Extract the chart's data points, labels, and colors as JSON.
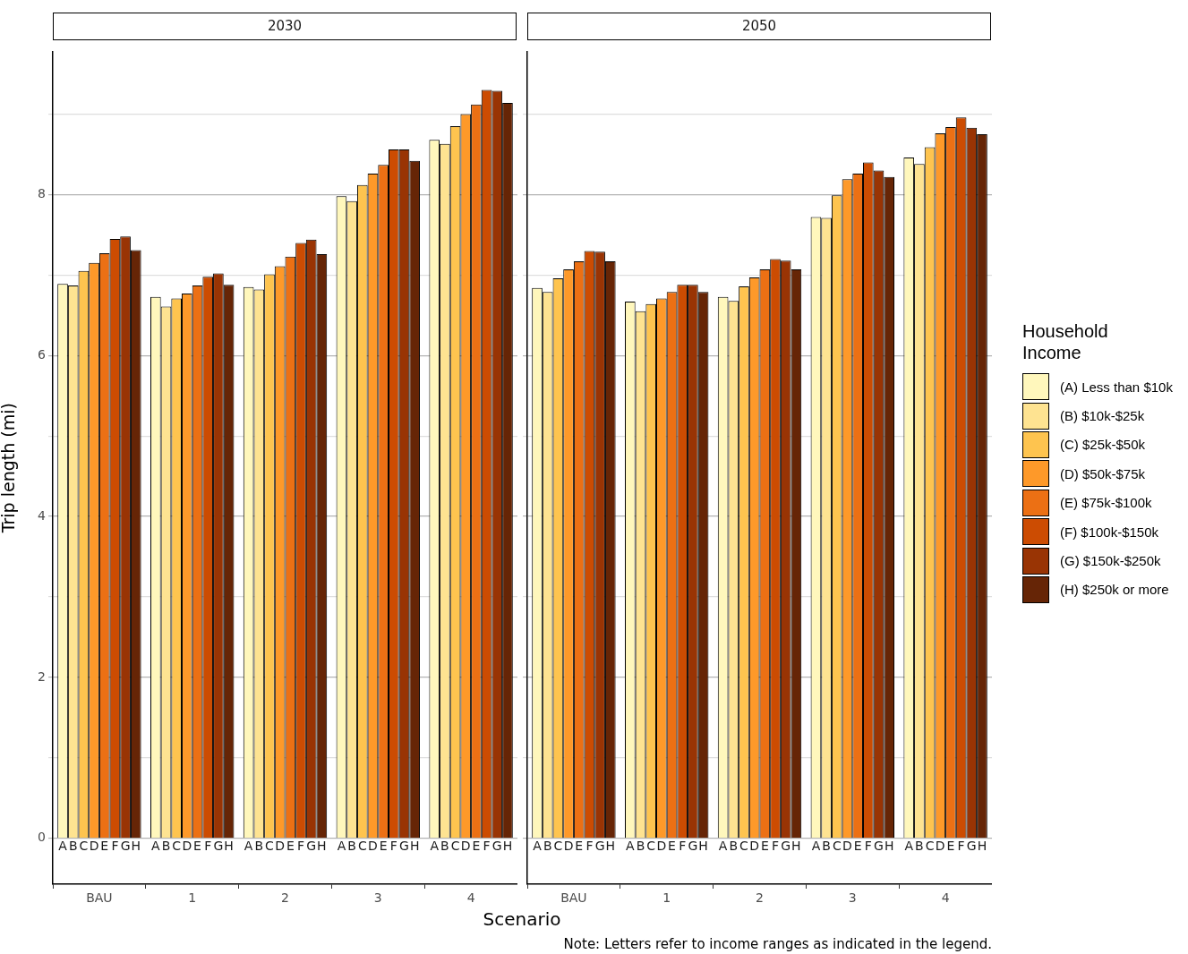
{
  "chart_data": [
    {
      "type": "bar",
      "title": "2030",
      "xlabel": "Scenario",
      "ylabel": "Trip length (mi)",
      "categories": [
        "BAU",
        "1",
        "2",
        "3",
        "4"
      ],
      "series": [
        {
          "color": "#fff7bc",
          "values": [
            6.89,
            6.73,
            6.85,
            7.98,
            8.68
          ]
        },
        {
          "color": "#fee391",
          "values": [
            6.87,
            6.61,
            6.82,
            7.92,
            8.63
          ]
        },
        {
          "color": "#fec44f",
          "values": [
            7.05,
            6.71,
            7.01,
            8.12,
            8.85
          ]
        },
        {
          "color": "#fe9929",
          "values": [
            7.15,
            6.77,
            7.11,
            8.26,
            9.0
          ]
        },
        {
          "color": "#ec7014",
          "values": [
            7.27,
            6.87,
            7.23,
            8.37,
            9.12
          ]
        },
        {
          "color": "#cc4c02",
          "values": [
            7.45,
            6.98,
            7.4,
            8.56,
            9.3
          ]
        },
        {
          "color": "#993404",
          "values": [
            7.48,
            7.02,
            7.44,
            8.56,
            9.29
          ]
        },
        {
          "color": "#662506",
          "values": [
            7.31,
            6.88,
            7.26,
            8.42,
            9.14
          ]
        }
      ],
      "annotations": [
        "A",
        "B",
        "C",
        "D",
        "E",
        "F",
        "G",
        "H"
      ],
      "ylim": [
        -0.57,
        9.78
      ],
      "yticks": [
        0,
        {
          "value": 1,
          "label": null
        },
        2,
        {
          "value": 3,
          "label": null
        },
        4,
        {
          "value": 5,
          "label": null
        },
        6,
        {
          "value": 7,
          "label": null
        },
        8,
        {
          "value": 9,
          "label": null
        }
      ],
      "grid": "y"
    },
    {
      "type": "bar",
      "title": "2050",
      "legend": "right",
      "legend_title": "Household Income",
      "tick_labels": "x",
      "categories": [
        "BAU",
        "1",
        "2",
        "3",
        "4"
      ],
      "series": [
        {
          "name": "(A) Less than $10k",
          "color": "#fff7bc",
          "values": [
            6.84,
            6.67,
            6.73,
            7.72,
            8.46
          ]
        },
        {
          "name": "(B) $10k-$25k",
          "color": "#fee391",
          "values": [
            6.79,
            6.55,
            6.68,
            7.71,
            8.38
          ]
        },
        {
          "name": "(C) $25k-$50k",
          "color": "#fec44f",
          "values": [
            6.96,
            6.64,
            6.86,
            7.99,
            8.59
          ]
        },
        {
          "name": "(D) $50k-$75k",
          "color": "#fe9929",
          "values": [
            7.07,
            6.71,
            6.97,
            8.19,
            8.76
          ]
        },
        {
          "name": "(E) $75k-$100k",
          "color": "#ec7014",
          "values": [
            7.17,
            6.79,
            7.07,
            8.26,
            8.84
          ]
        },
        {
          "name": "(F) $100k-$150k",
          "color": "#cc4c02",
          "values": [
            7.3,
            6.88,
            7.2,
            8.4,
            8.96
          ]
        },
        {
          "name": "(G) $150k-$250k",
          "color": "#993404",
          "values": [
            7.29,
            6.88,
            7.18,
            8.3,
            8.83
          ]
        },
        {
          "name": "(H) $250k or more",
          "color": "#662506",
          "values": [
            7.17,
            6.79,
            7.07,
            8.22,
            8.75
          ]
        }
      ],
      "annotations": [
        "A",
        "B",
        "C",
        "D",
        "E",
        "F",
        "G",
        "H",
        "Note: Letters refer to income ranges as indicated in the legend."
      ],
      "ylim": [
        -0.57,
        9.78
      ],
      "yticks": [
        0,
        {
          "value": 1,
          "label": null
        },
        2,
        {
          "value": 3,
          "label": null
        },
        4,
        {
          "value": 5,
          "label": null
        },
        6,
        {
          "value": 7,
          "label": null
        },
        8,
        {
          "value": 9,
          "label": null
        }
      ],
      "grid": "y"
    }
  ]
}
